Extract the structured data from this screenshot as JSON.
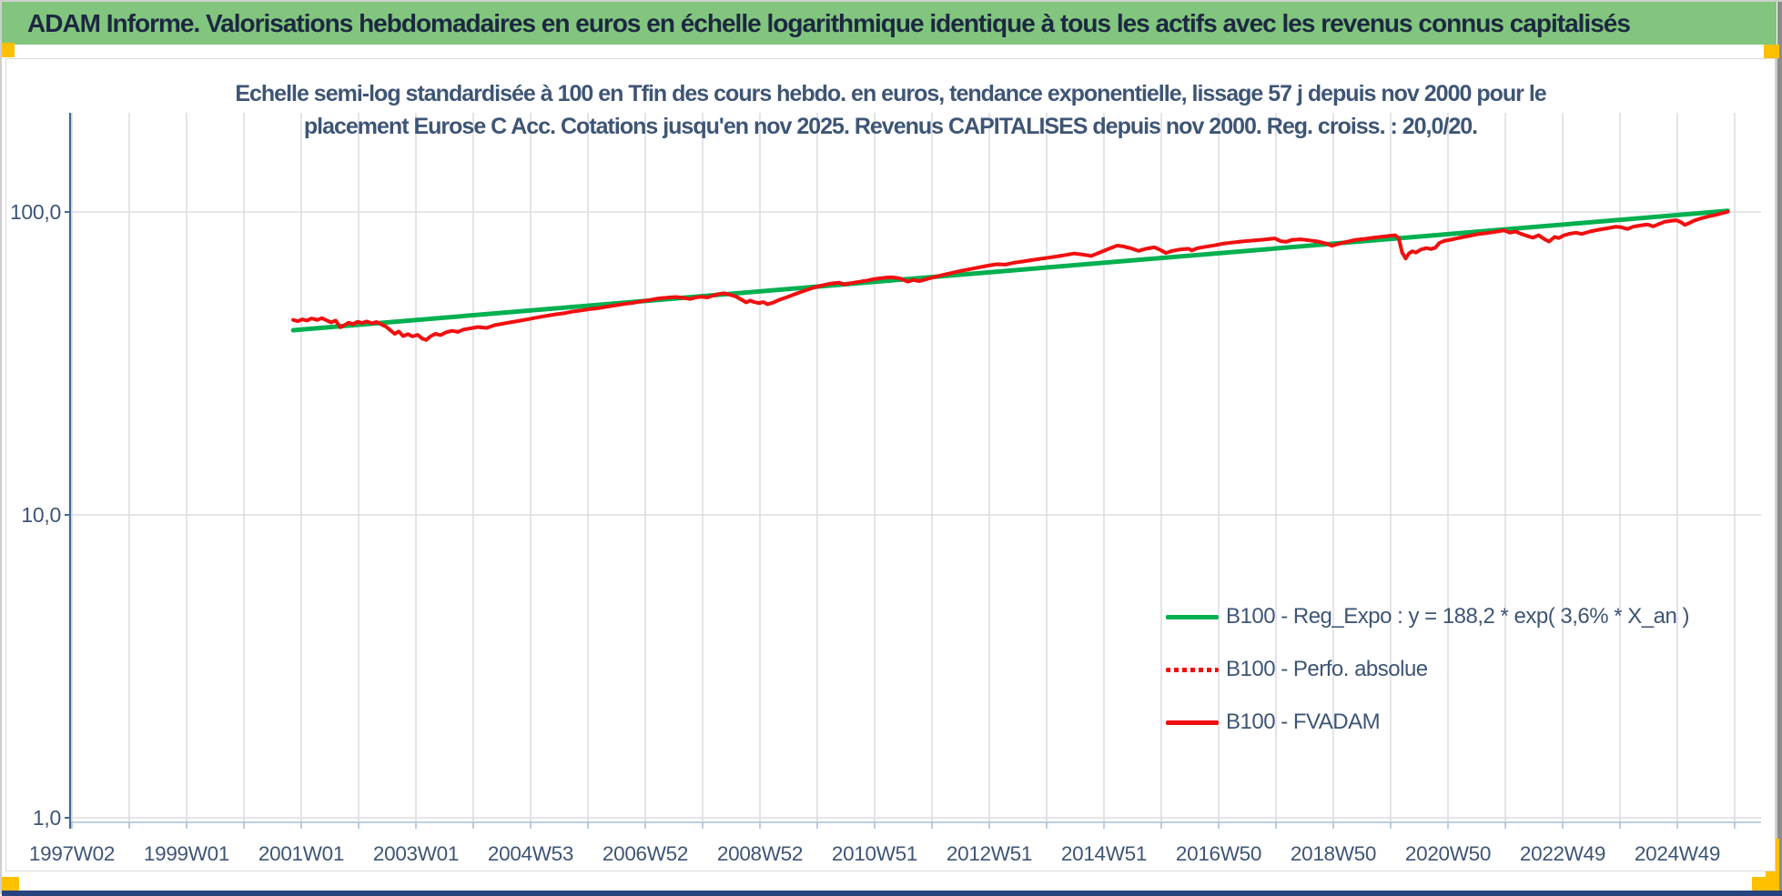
{
  "page": {
    "header": {
      "title": "ADAM Informe. Valorisations hebdomadaires en euros en échelle logarithmique identique à tous les actifs avec les revenus connus capitalisés",
      "bg_color": "#82C57E"
    },
    "colors": {
      "accent_cells": "#FFC000",
      "bottom_border": "#27447E",
      "axis_text": "#3E5575",
      "value_axis_line": "#44679B",
      "category_axis_line": "#A9BFD8",
      "gridline": "#DDDDE2"
    }
  },
  "chart_data": {
    "type": "line",
    "title_line1": "Echelle semi-log standardisée à 100 en Tfin des cours hebdo. en euros, tendance exponentielle, lissage 57 j depuis nov 2000 pour le",
    "title_line2": "placement Eurose C Acc. Cotations jusqu'en nov 2025. Revenus CAPITALISES depuis nov 2000. Reg. croiss. : 20,0/20.",
    "x_axis": {
      "labels": [
        "1997W02",
        "1999W01",
        "2001W01",
        "2003W01",
        "2004W53",
        "2006W52",
        "2008W52",
        "2010W51",
        "2012W51",
        "2014W51",
        "2016W50",
        "2018W50",
        "2020W50",
        "2022W49",
        "2024W49"
      ],
      "label_interval_weeks": 104,
      "gridline_interval_years": 1,
      "first_label_year": 1997.02,
      "gridline_count": 30
    },
    "y_axis": {
      "scale": "log10",
      "tick_labels": [
        "100,0",
        "10,0",
        "1,0"
      ],
      "tick_values": [
        100,
        10,
        1
      ],
      "min": 1,
      "max": 214
    },
    "legend_position": "inside-right",
    "series": [
      {
        "name": "B100 - Reg_Expo : y = 188,2 * exp( 3,6% *  X_an )",
        "color": "#00B050",
        "style": "solid",
        "width": 5,
        "points": [
          [
            2000.88,
            40.7
          ],
          [
            2025.9,
            100.8
          ]
        ]
      },
      {
        "name": "B100 - Perfo. absolue",
        "color": "#F01010",
        "style": "dotted",
        "width": 4,
        "overlaps_series": "B100 - FVADAM",
        "points": []
      },
      {
        "name": "B100 - FVADAM",
        "color": "#F01010",
        "style": "solid",
        "width": 4,
        "points": [
          [
            2000.88,
            44.0
          ],
          [
            2000.96,
            43.6
          ],
          [
            2001.04,
            44.2
          ],
          [
            2001.12,
            43.8
          ],
          [
            2001.2,
            44.5
          ],
          [
            2001.3,
            44.0
          ],
          [
            2001.38,
            44.6
          ],
          [
            2001.46,
            43.9
          ],
          [
            2001.54,
            43.2
          ],
          [
            2001.62,
            43.8
          ],
          [
            2001.7,
            41.6
          ],
          [
            2001.78,
            42.4
          ],
          [
            2001.85,
            43.1
          ],
          [
            2001.92,
            42.6
          ],
          [
            2002.0,
            43.4
          ],
          [
            2002.08,
            43.0
          ],
          [
            2002.16,
            43.5
          ],
          [
            2002.25,
            42.9
          ],
          [
            2002.33,
            43.3
          ],
          [
            2002.42,
            42.5
          ],
          [
            2002.5,
            41.8
          ],
          [
            2002.58,
            40.6
          ],
          [
            2002.65,
            39.6
          ],
          [
            2002.72,
            40.3
          ],
          [
            2002.8,
            38.9
          ],
          [
            2002.88,
            39.5
          ],
          [
            2002.96,
            38.8
          ],
          [
            2003.05,
            39.3
          ],
          [
            2003.13,
            38.2
          ],
          [
            2003.2,
            37.8
          ],
          [
            2003.28,
            38.9
          ],
          [
            2003.36,
            39.6
          ],
          [
            2003.45,
            39.2
          ],
          [
            2003.55,
            40.1
          ],
          [
            2003.65,
            40.5
          ],
          [
            2003.75,
            40.2
          ],
          [
            2003.85,
            40.9
          ],
          [
            2003.95,
            41.2
          ],
          [
            2004.1,
            41.7
          ],
          [
            2004.25,
            41.4
          ],
          [
            2004.4,
            42.3
          ],
          [
            2004.55,
            42.8
          ],
          [
            2004.7,
            43.3
          ],
          [
            2004.85,
            43.8
          ],
          [
            2005.0,
            44.3
          ],
          [
            2005.15,
            44.9
          ],
          [
            2005.3,
            45.4
          ],
          [
            2005.45,
            45.9
          ],
          [
            2005.6,
            46.3
          ],
          [
            2005.75,
            46.9
          ],
          [
            2005.9,
            47.3
          ],
          [
            2006.05,
            47.8
          ],
          [
            2006.2,
            48.1
          ],
          [
            2006.35,
            48.7
          ],
          [
            2006.5,
            49.2
          ],
          [
            2006.65,
            49.7
          ],
          [
            2006.8,
            50.1
          ],
          [
            2006.95,
            50.7
          ],
          [
            2007.1,
            51.2
          ],
          [
            2007.25,
            51.8
          ],
          [
            2007.4,
            52.1
          ],
          [
            2007.55,
            52.4
          ],
          [
            2007.7,
            52.0
          ],
          [
            2007.8,
            51.6
          ],
          [
            2007.9,
            52.2
          ],
          [
            2008.0,
            52.5
          ],
          [
            2008.1,
            52.2
          ],
          [
            2008.2,
            52.9
          ],
          [
            2008.3,
            53.6
          ],
          [
            2008.4,
            53.9
          ],
          [
            2008.5,
            53.3
          ],
          [
            2008.6,
            52.6
          ],
          [
            2008.7,
            51.3
          ],
          [
            2008.78,
            50.3
          ],
          [
            2008.85,
            51.0
          ],
          [
            2008.92,
            50.4
          ],
          [
            2009.0,
            50.0
          ],
          [
            2009.08,
            50.4
          ],
          [
            2009.15,
            49.6
          ],
          [
            2009.25,
            50.2
          ],
          [
            2009.35,
            51.2
          ],
          [
            2009.5,
            52.4
          ],
          [
            2009.65,
            53.7
          ],
          [
            2009.8,
            55.0
          ],
          [
            2009.95,
            56.2
          ],
          [
            2010.1,
            57.2
          ],
          [
            2010.25,
            58.0
          ],
          [
            2010.4,
            58.4
          ],
          [
            2010.5,
            57.6
          ],
          [
            2010.6,
            58.2
          ],
          [
            2010.75,
            58.8
          ],
          [
            2010.9,
            59.4
          ],
          [
            2011.0,
            60.0
          ],
          [
            2011.15,
            60.5
          ],
          [
            2011.3,
            60.9
          ],
          [
            2011.45,
            60.4
          ],
          [
            2011.6,
            58.9
          ],
          [
            2011.7,
            59.6
          ],
          [
            2011.8,
            59.1
          ],
          [
            2011.95,
            60.2
          ],
          [
            2012.1,
            61.2
          ],
          [
            2012.25,
            62.2
          ],
          [
            2012.4,
            63.1
          ],
          [
            2012.55,
            64.0
          ],
          [
            2012.7,
            64.8
          ],
          [
            2012.85,
            65.7
          ],
          [
            2013.0,
            66.5
          ],
          [
            2013.15,
            67.2
          ],
          [
            2013.3,
            67.0
          ],
          [
            2013.45,
            68.0
          ],
          [
            2013.6,
            68.6
          ],
          [
            2013.75,
            69.3
          ],
          [
            2013.9,
            70.0
          ],
          [
            2014.05,
            70.6
          ],
          [
            2014.2,
            71.3
          ],
          [
            2014.35,
            72.1
          ],
          [
            2014.5,
            72.9
          ],
          [
            2014.65,
            72.3
          ],
          [
            2014.8,
            71.6
          ],
          [
            2014.95,
            73.5
          ],
          [
            2015.1,
            75.5
          ],
          [
            2015.25,
            77.4
          ],
          [
            2015.35,
            77.0
          ],
          [
            2015.5,
            75.8
          ],
          [
            2015.62,
            74.4
          ],
          [
            2015.75,
            75.6
          ],
          [
            2015.9,
            76.4
          ],
          [
            2016.0,
            75.0
          ],
          [
            2016.1,
            73.2
          ],
          [
            2016.2,
            74.3
          ],
          [
            2016.35,
            75.2
          ],
          [
            2016.5,
            75.6
          ],
          [
            2016.55,
            74.6
          ],
          [
            2016.65,
            75.9
          ],
          [
            2016.8,
            76.8
          ],
          [
            2016.95,
            77.6
          ],
          [
            2017.1,
            78.6
          ],
          [
            2017.25,
            79.2
          ],
          [
            2017.4,
            79.8
          ],
          [
            2017.55,
            80.3
          ],
          [
            2017.7,
            80.7
          ],
          [
            2017.85,
            81.2
          ],
          [
            2018.0,
            81.8
          ],
          [
            2018.1,
            80.1
          ],
          [
            2018.2,
            79.7
          ],
          [
            2018.3,
            80.9
          ],
          [
            2018.45,
            81.2
          ],
          [
            2018.6,
            80.6
          ],
          [
            2018.75,
            79.9
          ],
          [
            2018.9,
            78.6
          ],
          [
            2019.0,
            77.3
          ],
          [
            2019.1,
            78.4
          ],
          [
            2019.25,
            79.6
          ],
          [
            2019.4,
            80.8
          ],
          [
            2019.55,
            81.4
          ],
          [
            2019.7,
            82.1
          ],
          [
            2019.85,
            82.8
          ],
          [
            2020.0,
            83.4
          ],
          [
            2020.1,
            83.8
          ],
          [
            2020.16,
            82.0
          ],
          [
            2020.22,
            73.5
          ],
          [
            2020.28,
            70.2
          ],
          [
            2020.34,
            73.0
          ],
          [
            2020.4,
            74.2
          ],
          [
            2020.46,
            73.4
          ],
          [
            2020.55,
            75.2
          ],
          [
            2020.65,
            76.0
          ],
          [
            2020.72,
            75.4
          ],
          [
            2020.8,
            76.2
          ],
          [
            2020.87,
            79.0
          ],
          [
            2020.95,
            80.2
          ],
          [
            2021.1,
            81.2
          ],
          [
            2021.25,
            82.4
          ],
          [
            2021.4,
            83.4
          ],
          [
            2021.55,
            84.6
          ],
          [
            2021.7,
            85.2
          ],
          [
            2021.85,
            86.0
          ],
          [
            2022.0,
            86.9
          ],
          [
            2022.1,
            85.4
          ],
          [
            2022.2,
            86.2
          ],
          [
            2022.3,
            84.6
          ],
          [
            2022.4,
            83.4
          ],
          [
            2022.5,
            82.2
          ],
          [
            2022.6,
            83.8
          ],
          [
            2022.7,
            81.4
          ],
          [
            2022.78,
            79.9
          ],
          [
            2022.88,
            82.6
          ],
          [
            2022.95,
            82.0
          ],
          [
            2023.05,
            83.8
          ],
          [
            2023.15,
            84.8
          ],
          [
            2023.25,
            85.4
          ],
          [
            2023.35,
            84.6
          ],
          [
            2023.5,
            86.2
          ],
          [
            2023.65,
            87.4
          ],
          [
            2023.8,
            88.3
          ],
          [
            2023.95,
            89.4
          ],
          [
            2024.05,
            89.0
          ],
          [
            2024.15,
            87.8
          ],
          [
            2024.25,
            89.4
          ],
          [
            2024.4,
            90.4
          ],
          [
            2024.5,
            90.9
          ],
          [
            2024.6,
            89.6
          ],
          [
            2024.7,
            91.2
          ],
          [
            2024.8,
            92.8
          ],
          [
            2024.9,
            93.4
          ],
          [
            2025.0,
            93.9
          ],
          [
            2025.08,
            92.6
          ],
          [
            2025.15,
            90.6
          ],
          [
            2025.22,
            91.8
          ],
          [
            2025.3,
            93.4
          ],
          [
            2025.4,
            94.8
          ],
          [
            2025.5,
            96.0
          ],
          [
            2025.6,
            97.0
          ],
          [
            2025.7,
            97.9
          ],
          [
            2025.78,
            98.8
          ],
          [
            2025.85,
            99.6
          ],
          [
            2025.9,
            100.2
          ]
        ]
      }
    ]
  }
}
